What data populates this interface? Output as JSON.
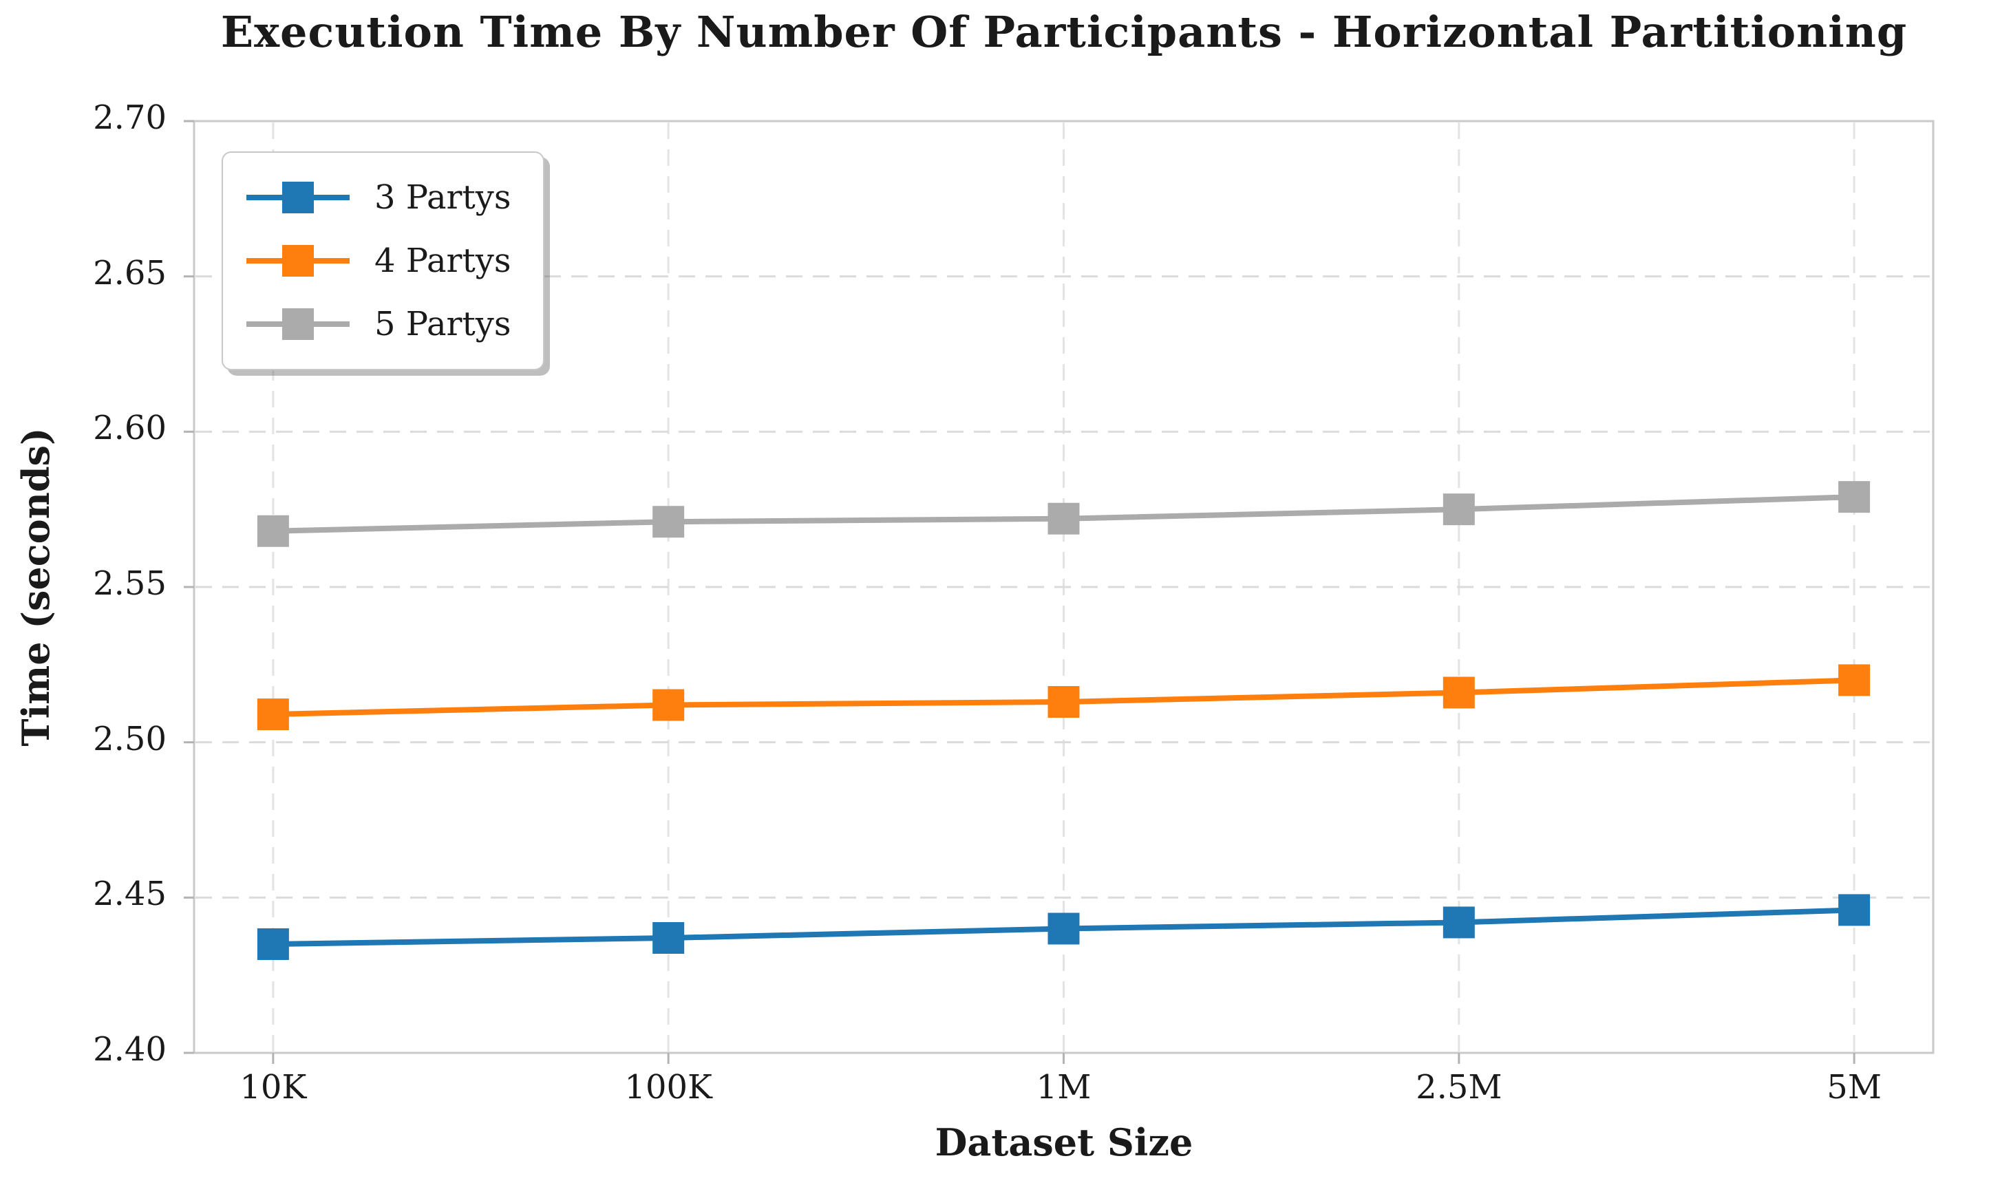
{
  "figure": {
    "title": "Execution Time By Number Of Participants - Horizontal Partitioning"
  },
  "chart_data": {
    "type": "line",
    "title": "Execution Time By Number Of Participants - Horizontal Partitioning",
    "xlabel": "Dataset Size",
    "ylabel": "Time (seconds)",
    "categories": [
      "10K",
      "100K",
      "1M",
      "2.5M",
      "5M"
    ],
    "series": [
      {
        "name": "3 Partys",
        "color": "#1f77b4",
        "values": [
          2.435,
          2.437,
          2.44,
          2.442,
          2.446
        ]
      },
      {
        "name": "4 Partys",
        "color": "#ff7f0e",
        "values": [
          2.509,
          2.512,
          2.513,
          2.516,
          2.52
        ]
      },
      {
        "name": "5 Partys",
        "color": "#ababab",
        "values": [
          2.568,
          2.571,
          2.572,
          2.575,
          2.579
        ]
      }
    ],
    "ylim": [
      2.4,
      2.7
    ],
    "yticks": [
      "2.40",
      "2.45",
      "2.50",
      "2.55",
      "2.60",
      "2.65",
      "2.70"
    ],
    "grid": true,
    "grid_style": "dashed",
    "legend_position": "upper left",
    "marker": "square",
    "colors": {
      "grid": "#dcdcdc",
      "spine": "#c9c9c9",
      "tick": "#b3b3b3",
      "text": "#1a1a1a"
    }
  }
}
